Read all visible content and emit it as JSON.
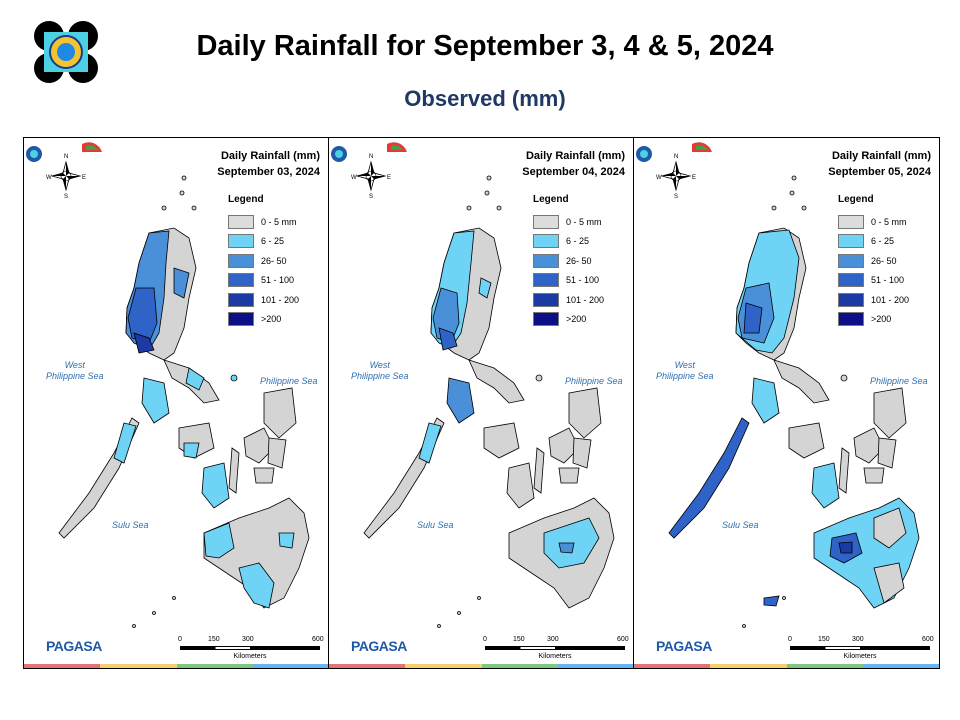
{
  "header": {
    "title": "Daily Rainfall for September 3, 4  & 5, 2024",
    "subtitle": "Observed (mm)"
  },
  "panels": [
    {
      "title_line1": "Daily Rainfall (mm)",
      "title_line2": "September 03, 2024"
    },
    {
      "title_line1": "Daily Rainfall (mm)",
      "title_line2": "September 04, 2024"
    },
    {
      "title_line1": "Daily Rainfall (mm)",
      "title_line2": "September 05, 2024"
    }
  ],
  "legend": {
    "title": "Legend",
    "items": [
      {
        "label": "0 - 5 mm",
        "color": "#dcdcdc"
      },
      {
        "label": "6 - 25",
        "color": "#6fd3f5"
      },
      {
        "label": "26- 50",
        "color": "#4a90d9"
      },
      {
        "label": "51 - 100",
        "color": "#2f63c8"
      },
      {
        "label": "101 - 200",
        "color": "#1b3aa6"
      },
      {
        "label": ">200",
        "color": "#0d0f86"
      }
    ]
  },
  "seas": {
    "west": "West\nPhilippine Sea",
    "east": "Philippine Sea",
    "south": "Sulu Sea"
  },
  "scale": {
    "t0": "0",
    "t1": "150",
    "t2": "300",
    "t3": "600",
    "unit": "Kilometers"
  },
  "compass": {
    "n": "N",
    "s": "S",
    "e": "E",
    "w": "W"
  },
  "branding": {
    "org": "PAGASA"
  }
}
